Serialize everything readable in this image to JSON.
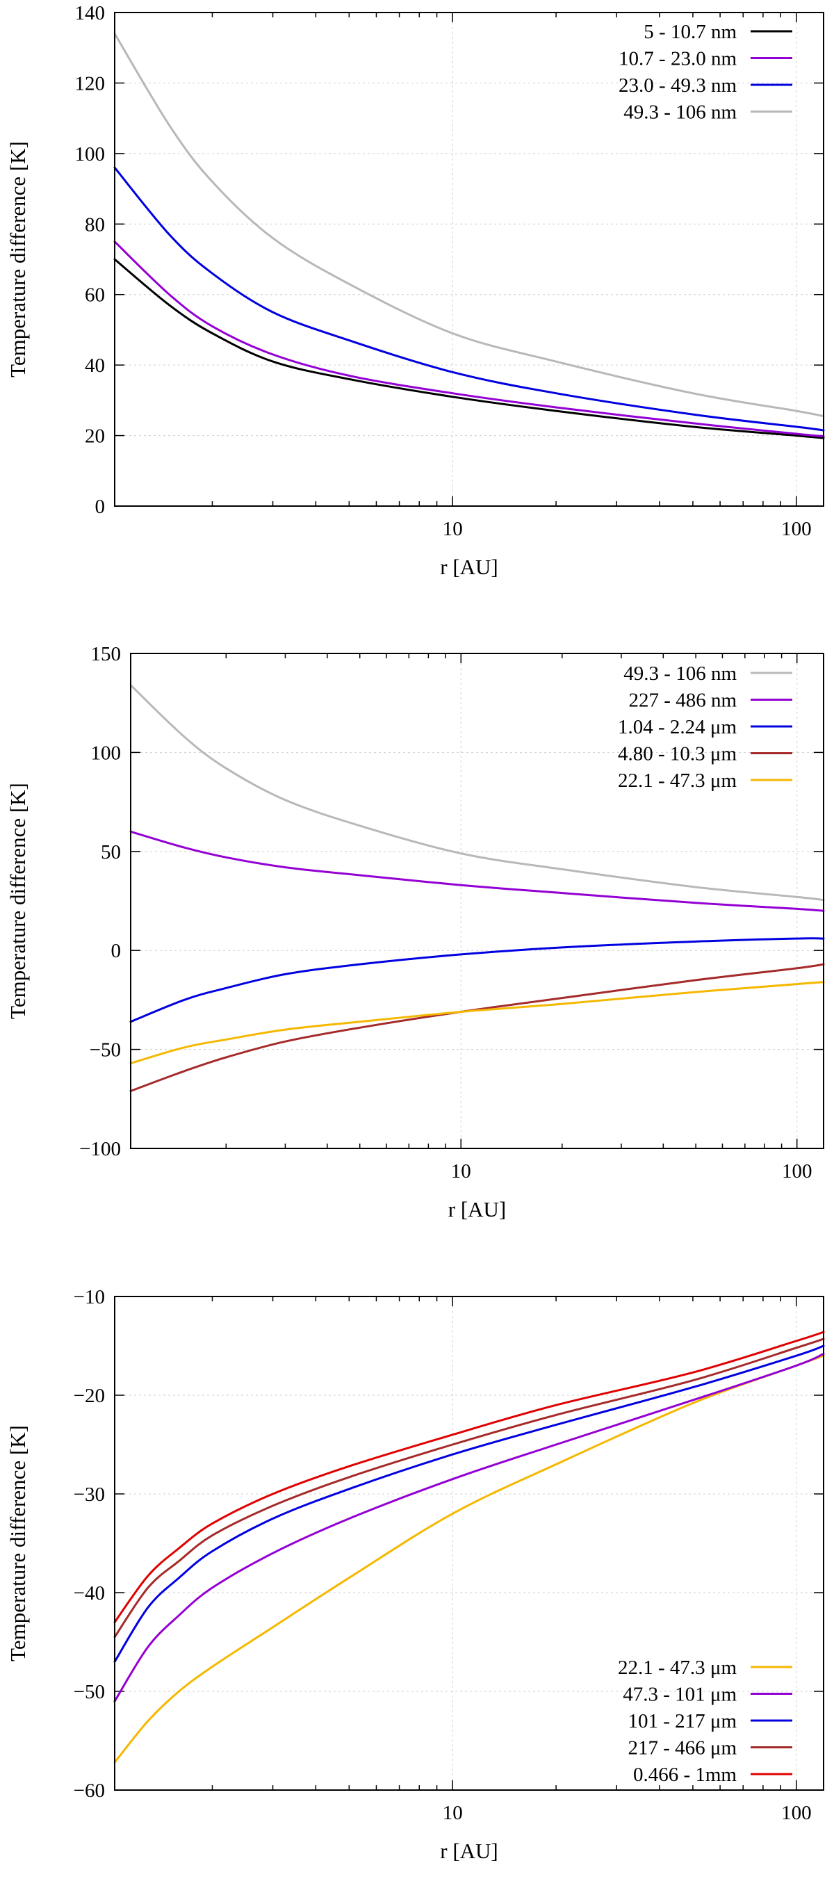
{
  "figure": {
    "colors": {
      "black": "#000000",
      "purple": "#9400d3",
      "blue": "#0000e0",
      "gray": "#b8b8b8",
      "darkred": "#a52a2a",
      "orange": "#f5b800",
      "red": "#e00000"
    }
  },
  "chart_data": [
    {
      "type": "line",
      "title": "",
      "xlabel": "r [AU]",
      "ylabel": "Temperature difference [K]",
      "xscale": "log",
      "xlim": [
        1.04,
        120
      ],
      "ylim": [
        0,
        140
      ],
      "grid": true,
      "legend_position": "top-right",
      "x_ticks": [
        {
          "value": 10,
          "label": "10"
        },
        {
          "value": 100,
          "label": "100"
        }
      ],
      "y_ticks": [
        {
          "value": 0,
          "label": "0"
        },
        {
          "value": 20,
          "label": "20"
        },
        {
          "value": 40,
          "label": "40"
        },
        {
          "value": 60,
          "label": "60"
        },
        {
          "value": 80,
          "label": "80"
        },
        {
          "value": 100,
          "label": "100"
        },
        {
          "value": 120,
          "label": "120"
        },
        {
          "value": 140,
          "label": "140"
        }
      ],
      "x": [
        1.04,
        1.5,
        2,
        3,
        5,
        10,
        20,
        50,
        100,
        120
      ],
      "series": [
        {
          "name": "5 - 10.7 nm",
          "color": "#000000",
          "values": [
            70,
            57,
            49,
            41,
            36,
            31,
            27,
            22.5,
            20,
            19.3
          ]
        },
        {
          "name": "10.7 - 23.0 nm",
          "color": "#9400d3",
          "values": [
            75,
            60,
            51,
            43,
            37,
            32,
            28,
            23.5,
            20.5,
            19.8
          ]
        },
        {
          "name": "23.0 - 49.3 nm",
          "color": "#0000e0",
          "values": [
            96,
            77,
            66,
            55,
            47,
            38,
            32,
            26,
            22.5,
            21.5
          ]
        },
        {
          "name": "49.3 - 106 nm",
          "color": "#b8b8b8",
          "values": [
            134,
            108,
            92,
            76,
            63,
            49,
            41,
            32,
            27,
            25.5
          ]
        }
      ]
    },
    {
      "type": "line",
      "title": "",
      "xlabel": "r [AU]",
      "ylabel": "Temperature difference [K]",
      "xscale": "log",
      "xlim": [
        1.04,
        120
      ],
      "ylim": [
        -100,
        150
      ],
      "grid": true,
      "legend_position": "top-right",
      "x_ticks": [
        {
          "value": 10,
          "label": "10"
        },
        {
          "value": 100,
          "label": "100"
        }
      ],
      "y_ticks": [
        {
          "value": -100,
          "label": "−100"
        },
        {
          "value": -50,
          "label": "−50"
        },
        {
          "value": 0,
          "label": "0"
        },
        {
          "value": 50,
          "label": "50"
        },
        {
          "value": 100,
          "label": "100"
        },
        {
          "value": 150,
          "label": "150"
        }
      ],
      "x": [
        1.04,
        1.5,
        2,
        3,
        5,
        10,
        20,
        50,
        100,
        120
      ],
      "series": [
        {
          "name": "49.3 - 106 nm",
          "color": "#b8b8b8",
          "values": [
            134,
            108,
            92,
            76,
            63,
            49,
            41,
            32,
            27,
            25.5
          ]
        },
        {
          "name": "227 - 486 nm",
          "color": "#9400d3",
          "values": [
            60,
            52,
            47,
            42,
            38,
            33,
            29,
            24,
            21,
            20
          ]
        },
        {
          "name": "1.04 - 2.24 μm",
          "color": "#0000e0",
          "values": [
            -36,
            -25,
            -19,
            -12,
            -7,
            -2,
            1.5,
            4.5,
            6,
            6
          ]
        },
        {
          "name": "4.80 - 10.3 μm",
          "color": "#a52a2a",
          "values": [
            -71,
            -61,
            -54,
            -46,
            -39,
            -31,
            -24,
            -15,
            -9,
            -7
          ]
        },
        {
          "name": "22.1 - 47.3 μm",
          "color": "#f5b800",
          "values": [
            -57,
            -49,
            -45,
            -40,
            -36,
            -31,
            -27,
            -21,
            -17,
            -16
          ]
        }
      ]
    },
    {
      "type": "line",
      "title": "",
      "xlabel": "r [AU]",
      "ylabel": "Temperature difference [K]",
      "xscale": "log",
      "xlim": [
        1.04,
        120
      ],
      "ylim": [
        -60,
        -10
      ],
      "grid": true,
      "legend_position": "bottom-right",
      "x_ticks": [
        {
          "value": 10,
          "label": "10"
        },
        {
          "value": 100,
          "label": "100"
        }
      ],
      "y_ticks": [
        {
          "value": -60,
          "label": "−60"
        },
        {
          "value": -50,
          "label": "−50"
        },
        {
          "value": -40,
          "label": "−40"
        },
        {
          "value": -30,
          "label": "−30"
        },
        {
          "value": -20,
          "label": "−20"
        },
        {
          "value": -10,
          "label": "−10"
        }
      ],
      "x": [
        1.04,
        1.3,
        1.6,
        2,
        3,
        5,
        10,
        20,
        50,
        100,
        120
      ],
      "series": [
        {
          "name": "22.1 - 47.3 μm",
          "color": "#f5b800",
          "values": [
            -57.2,
            -53,
            -50,
            -47.5,
            -43.5,
            -38.5,
            -32,
            -27,
            -20.8,
            -17,
            -16
          ]
        },
        {
          "name": "47.3 - 101 μm",
          "color": "#9400d3",
          "values": [
            -51,
            -45.5,
            -42.3,
            -39.5,
            -36,
            -32.5,
            -28.5,
            -25,
            -20.5,
            -17,
            -15.8
          ]
        },
        {
          "name": "101 - 217 μm",
          "color": "#0000e0",
          "values": [
            -47,
            -41.5,
            -38.5,
            -35.8,
            -32.5,
            -29.5,
            -26,
            -23,
            -19.2,
            -16,
            -15
          ]
        },
        {
          "name": "217 - 466 μm",
          "color": "#a52a2a",
          "values": [
            -44.5,
            -39.5,
            -36.8,
            -34.2,
            -31.2,
            -28.3,
            -25,
            -22,
            -18.5,
            -15.2,
            -14.3
          ]
        },
        {
          "name": "0.466 - 1mm",
          "color": "#e00000",
          "values": [
            -43,
            -38.3,
            -35.5,
            -33,
            -30,
            -27.2,
            -24,
            -21,
            -17.7,
            -14.5,
            -13.6
          ]
        }
      ]
    }
  ]
}
